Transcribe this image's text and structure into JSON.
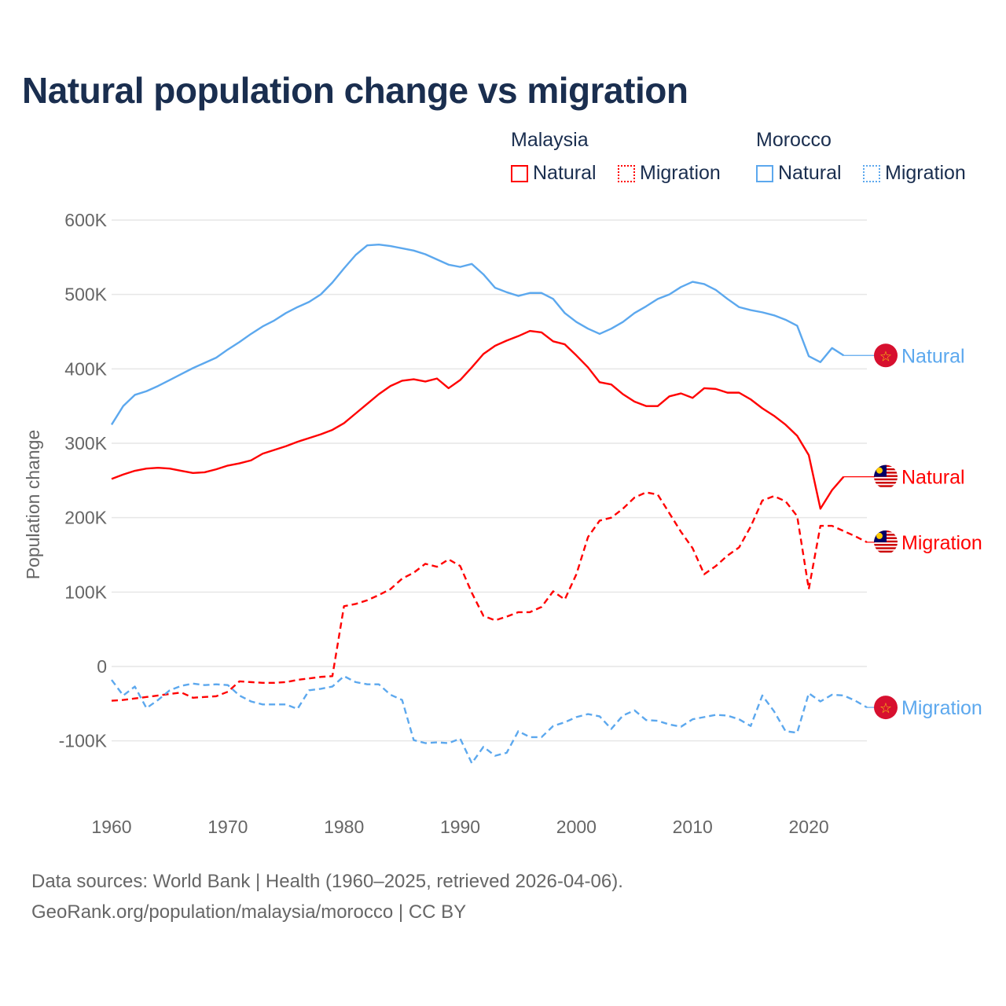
{
  "title": "Natural population change vs migration",
  "legend": {
    "groups": [
      {
        "name": "Malaysia",
        "color": "#ff0000",
        "items": [
          "Natural",
          "Migration"
        ]
      },
      {
        "name": "Morocco",
        "color": "#5ca8ee",
        "items": [
          "Natural",
          "Migration"
        ]
      }
    ]
  },
  "footer": {
    "line1": "Data sources: World Bank | Health (1960–2025, retrieved 2026-04-06).",
    "line2": "GeoRank.org/population/malaysia/morocco | CC BY"
  },
  "chart_data": {
    "type": "line",
    "title": "Natural population change vs migration",
    "xlabel": "",
    "ylabel": "Population change",
    "xlim": [
      1960,
      2025
    ],
    "ylim": [
      -150000,
      600000
    ],
    "x_ticks": [
      "1960",
      "1970",
      "1980",
      "1990",
      "2000",
      "2010",
      "2020"
    ],
    "y_ticks": [
      {
        "v": -100000,
        "label": "-100K"
      },
      {
        "v": 0,
        "label": "0"
      },
      {
        "v": 100000,
        "label": "100K"
      },
      {
        "v": 200000,
        "label": "200K"
      },
      {
        "v": 300000,
        "label": "300K"
      },
      {
        "v": 400000,
        "label": "400K"
      },
      {
        "v": 500000,
        "label": "500K"
      },
      {
        "v": 600000,
        "label": "600K"
      }
    ],
    "grid": true,
    "start_year": 1960,
    "series": [
      {
        "name": "Morocco Natural",
        "label": "Natural",
        "color": "#5ca8ee",
        "dashed": false,
        "flag": "morocco",
        "values_k": [
          325,
          350,
          365,
          370,
          377,
          385,
          393,
          401,
          408,
          415,
          426,
          436,
          447,
          457,
          465,
          475,
          483,
          490,
          500,
          516,
          535,
          553,
          566,
          567,
          565,
          562,
          559,
          554,
          547,
          540,
          537,
          541,
          527,
          509,
          503,
          498,
          502,
          502,
          494,
          475,
          463,
          454,
          447,
          454,
          463,
          475,
          484,
          494,
          500,
          510,
          517,
          514,
          506,
          494,
          483,
          479,
          476,
          472,
          466,
          458,
          417,
          409,
          428,
          418
        ]
      },
      {
        "name": "Malaysia Natural",
        "label": "Natural",
        "color": "#ff0000",
        "dashed": false,
        "flag": "malaysia",
        "values_k": [
          252,
          258,
          263,
          266,
          267,
          266,
          263,
          260,
          261,
          265,
          270,
          273,
          277,
          286,
          291,
          296,
          302,
          307,
          312,
          318,
          327,
          340,
          353,
          366,
          377,
          384,
          386,
          383,
          387,
          374,
          385,
          402,
          420,
          431,
          438,
          444,
          451,
          449,
          437,
          433,
          418,
          402,
          382,
          379,
          366,
          356,
          350,
          350,
          363,
          367,
          361,
          374,
          373,
          368,
          368,
          359,
          347,
          337,
          325,
          310,
          284,
          212,
          237,
          255
        ]
      },
      {
        "name": "Malaysia Migration",
        "label": "Migration",
        "color": "#ff0000",
        "dashed": true,
        "flag": "malaysia",
        "values_k": [
          -46,
          -45,
          -43,
          -41,
          -39,
          -37,
          -35,
          -42,
          -41,
          -40,
          -34,
          -20,
          -21,
          -22,
          -22,
          -21,
          -18,
          -16,
          -14,
          -13,
          81,
          84,
          89,
          96,
          104,
          118,
          126,
          138,
          134,
          144,
          135,
          99,
          68,
          62,
          67,
          73,
          73,
          80,
          101,
          90,
          124,
          174,
          196,
          200,
          212,
          227,
          234,
          231,
          206,
          181,
          159,
          124,
          135,
          149,
          160,
          188,
          223,
          229,
          222,
          202,
          104,
          189,
          189,
          182,
          175,
          167
        ]
      },
      {
        "name": "Morocco Migration",
        "label": "Migration",
        "color": "#5ca8ee",
        "dashed": true,
        "flag": "morocco",
        "values_k": [
          -18,
          -39,
          -27,
          -56,
          -45,
          -32,
          -26,
          -23,
          -25,
          -24,
          -25,
          -39,
          -47,
          -51,
          -51,
          -51,
          -57,
          -32,
          -30,
          -27,
          -13,
          -21,
          -24,
          -24,
          -38,
          -45,
          -99,
          -103,
          -102,
          -103,
          -97,
          -130,
          -108,
          -120,
          -116,
          -87,
          -95,
          -95,
          -80,
          -75,
          -68,
          -64,
          -67,
          -84,
          -66,
          -59,
          -72,
          -73,
          -78,
          -81,
          -71,
          -68,
          -65,
          -66,
          -71,
          -80,
          -39,
          -60,
          -87,
          -89,
          -36,
          -47,
          -38,
          -39,
          -46,
          -55
        ]
      }
    ]
  }
}
